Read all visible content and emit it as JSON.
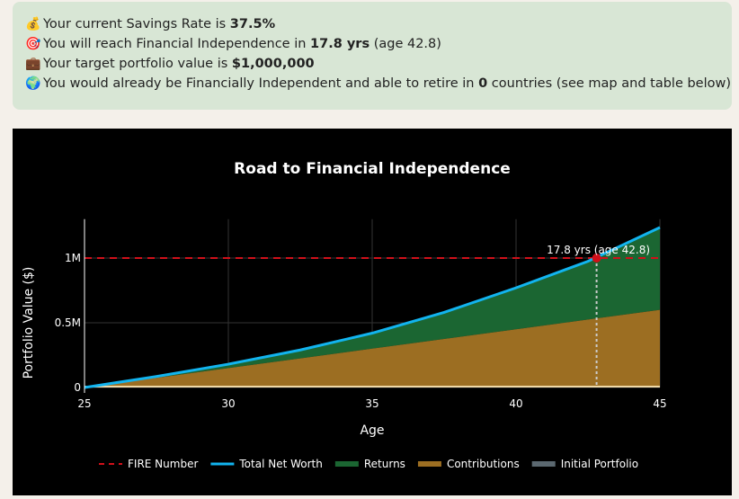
{
  "summary": {
    "lines": [
      {
        "icon": "money-bag-icon",
        "glyph": "💰",
        "pre": "Your current Savings Rate is ",
        "bold": "37.5%",
        "post": ""
      },
      {
        "icon": "target-icon",
        "glyph": "🎯",
        "pre": "You will reach Financial Independence in ",
        "bold": "17.8 yrs",
        "post": " (age 42.8)"
      },
      {
        "icon": "briefcase-icon",
        "glyph": "💼",
        "pre": "Your target portfolio value is ",
        "bold": "$1,000,000",
        "post": ""
      },
      {
        "icon": "globe-icon",
        "glyph": "🌍",
        "pre": "You would already be Financially Independent and able to retire in ",
        "bold": "0",
        "post": " countries (see map and table below)"
      }
    ]
  },
  "colors": {
    "fire": "#d0101a",
    "net_worth": "#12b4ef",
    "returns": "#1b6632",
    "contributions": "#9c6e22",
    "initial": "#5b6870",
    "background": "#000000"
  },
  "chart_data": {
    "type": "area",
    "title": "Road to Financial Independence",
    "xlabel": "Age",
    "ylabel": "Portfolio Value ($)",
    "xlim": [
      25,
      45
    ],
    "ylim": [
      0,
      1300000
    ],
    "x_ticks": [
      25,
      30,
      35,
      40,
      45
    ],
    "y_ticks": [
      {
        "v": 0,
        "label": "0"
      },
      {
        "v": 500000,
        "label": "0.5M"
      },
      {
        "v": 1000000,
        "label": "1M"
      }
    ],
    "x": [
      25,
      27.5,
      30,
      32.5,
      35,
      37.5,
      40,
      42.5,
      45
    ],
    "series": [
      {
        "name": "FIRE Number",
        "style": "dashed-line",
        "values": [
          1000000,
          1000000,
          1000000,
          1000000,
          1000000,
          1000000,
          1000000,
          1000000,
          1000000
        ]
      },
      {
        "name": "Total Net Worth",
        "style": "line",
        "values": [
          0,
          85000,
          180000,
          290000,
          420000,
          580000,
          770000,
          975000,
          1236000
        ]
      },
      {
        "name": "Returns",
        "style": "stacked-area",
        "values": [
          0,
          5000,
          30000,
          70000,
          120000,
          205000,
          320000,
          445000,
          636000
        ]
      },
      {
        "name": "Contributions",
        "style": "stacked-area",
        "values": [
          0,
          75000,
          150000,
          225000,
          300000,
          375000,
          450000,
          525000,
          600000
        ]
      },
      {
        "name": "Initial Portfolio",
        "style": "stacked-area",
        "values": [
          0,
          0,
          0,
          0,
          0,
          0,
          0,
          0,
          0
        ]
      }
    ],
    "annotation": {
      "x": 42.8,
      "y": 1000000,
      "text": "17.8 yrs (age 42.8)"
    },
    "legend_position": "bottom",
    "grid": true
  }
}
